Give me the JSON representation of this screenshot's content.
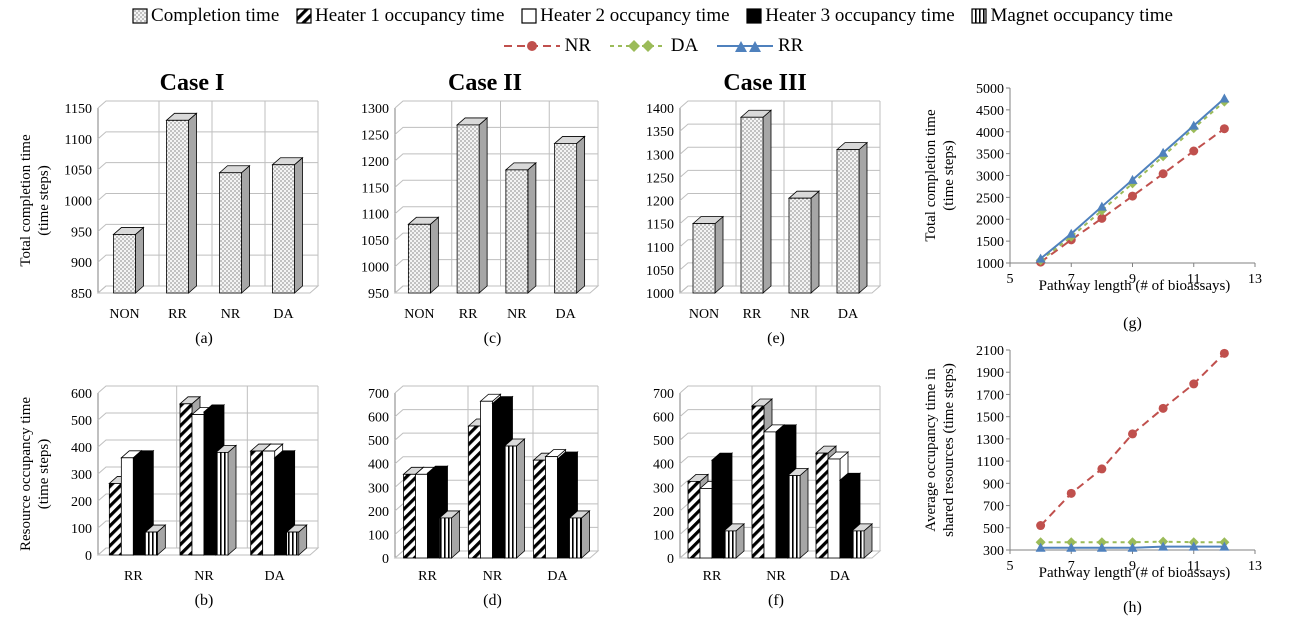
{
  "legend": {
    "bar_items": [
      {
        "label": "Completion time",
        "pattern": "dots"
      },
      {
        "label": "Heater 1 occupancy time",
        "pattern": "diag"
      },
      {
        "label": "Heater 2 occupancy time",
        "pattern": "white"
      },
      {
        "label": "Heater 3 occupancy time",
        "pattern": "black"
      },
      {
        "label": "Magnet occupancy time",
        "pattern": "vert"
      }
    ],
    "line_items": [
      {
        "label": "NR",
        "color": "#c0504d",
        "marker": "circle",
        "dash": "8,5"
      },
      {
        "label": "DA",
        "color": "#9bbb59",
        "marker": "diamond",
        "dash": "4,4"
      },
      {
        "label": "RR",
        "color": "#4f81bd",
        "marker": "triangle",
        "dash": ""
      }
    ]
  },
  "cases": [
    "Case I",
    "Case II",
    "Case III"
  ],
  "colors": {
    "dots_fill": "#f2f2f2",
    "side": "#a6a6a6",
    "grid": "#bfbfbf",
    "axis": "#808080"
  },
  "chart_data": [
    {
      "type": "bar",
      "panel": "(a)",
      "ylabel": "Total completion time (time steps)",
      "categories": [
        "NON",
        "RR",
        "NR",
        "DA"
      ],
      "series": [
        {
          "name": "Completion time",
          "values": [
            945,
            1130,
            1045,
            1058
          ]
        }
      ],
      "ylim": [
        850,
        1150
      ],
      "ystep": 50
    },
    {
      "type": "bar",
      "panel": "(c)",
      "ylabel": "",
      "categories": [
        "NON",
        "RR",
        "NR",
        "DA"
      ],
      "series": [
        {
          "name": "Completion time",
          "values": [
            1080,
            1268,
            1183,
            1233
          ]
        }
      ],
      "ylim": [
        950,
        1300
      ],
      "ystep": 50
    },
    {
      "type": "bar",
      "panel": "(e)",
      "ylabel": "",
      "categories": [
        "NON",
        "RR",
        "NR",
        "DA"
      ],
      "series": [
        {
          "name": "Completion time",
          "values": [
            1150,
            1380,
            1205,
            1310
          ]
        }
      ],
      "ylim": [
        1000,
        1400
      ],
      "ystep": 50
    },
    {
      "type": "bar",
      "panel": "(b)",
      "ylabel": "Resource occupancy time (time steps)",
      "categories": [
        "RR",
        "NR",
        "DA"
      ],
      "series": [
        {
          "name": "Heater 1 occupancy time",
          "values": [
            265,
            560,
            385
          ]
        },
        {
          "name": "Heater 2 occupancy time",
          "values": [
            360,
            520,
            385
          ]
        },
        {
          "name": "Heater 3 occupancy time",
          "values": [
            360,
            530,
            360
          ]
        },
        {
          "name": "Magnet occupancy time",
          "values": [
            85,
            380,
            85
          ]
        }
      ],
      "ylim": [
        0,
        600
      ],
      "ystep": 100
    },
    {
      "type": "bar",
      "panel": "(d)",
      "ylabel": "",
      "categories": [
        "RR",
        "NR",
        "DA"
      ],
      "series": [
        {
          "name": "Heater 1 occupancy time",
          "values": [
            355,
            560,
            415
          ]
        },
        {
          "name": "Heater 2 occupancy time",
          "values": [
            355,
            665,
            430
          ]
        },
        {
          "name": "Heater 3 occupancy time",
          "values": [
            360,
            655,
            420
          ]
        },
        {
          "name": "Magnet occupancy time",
          "values": [
            170,
            475,
            170
          ]
        }
      ],
      "ylim": [
        0,
        700
      ],
      "ystep": 100
    },
    {
      "type": "bar",
      "panel": "(f)",
      "ylabel": "",
      "categories": [
        "RR",
        "NR",
        "DA"
      ],
      "series": [
        {
          "name": "Heater 1 occupancy time",
          "values": [
            325,
            645,
            445
          ]
        },
        {
          "name": "Heater 2 occupancy time",
          "values": [
            295,
            535,
            420
          ]
        },
        {
          "name": "Heater 3 occupancy time",
          "values": [
            415,
            535,
            330
          ]
        },
        {
          "name": "Magnet occupancy time",
          "values": [
            115,
            350,
            115
          ]
        }
      ],
      "ylim": [
        0,
        700
      ],
      "ystep": 100
    },
    {
      "type": "line",
      "panel": "(g)",
      "xlabel": "Pathway length (# of bioassays)",
      "ylabel": "Total completion time (time steps)",
      "x": [
        6,
        7,
        8,
        9,
        10,
        11,
        12
      ],
      "series": [
        {
          "name": "NR",
          "values": [
            1020,
            1530,
            2020,
            2530,
            3040,
            3560,
            4070
          ]
        },
        {
          "name": "DA",
          "values": [
            1060,
            1600,
            2200,
            2820,
            3440,
            4080,
            4690
          ]
        },
        {
          "name": "RR",
          "values": [
            1100,
            1670,
            2290,
            2900,
            3520,
            4140,
            4760
          ]
        }
      ],
      "xlim": [
        5,
        13
      ],
      "xstep": 2,
      "ylim": [
        1000,
        5000
      ],
      "ystep": 500
    },
    {
      "type": "line",
      "panel": "(h)",
      "xlabel": "Pathway length (# of bioassays)",
      "ylabel": "Average occupancy time in shared resources (time steps)",
      "x": [
        6,
        7,
        8,
        9,
        10,
        11,
        12
      ],
      "series": [
        {
          "name": "NR",
          "values": [
            520,
            810,
            1030,
            1345,
            1575,
            1795,
            2070
          ]
        },
        {
          "name": "DA",
          "values": [
            370,
            370,
            370,
            370,
            375,
            370,
            370
          ]
        },
        {
          "name": "RR",
          "values": [
            320,
            320,
            320,
            320,
            330,
            330,
            330
          ]
        }
      ],
      "xlim": [
        5,
        13
      ],
      "xstep": 2,
      "ylim": [
        300,
        2100
      ],
      "ystep": 200
    }
  ]
}
